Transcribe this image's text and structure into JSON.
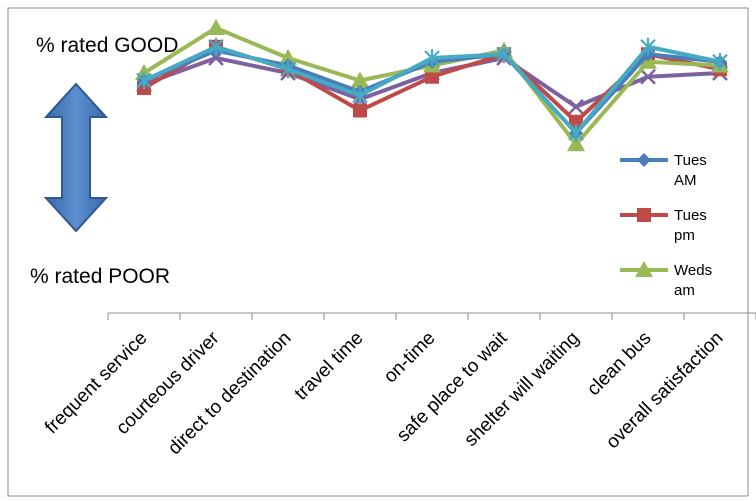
{
  "chart_data": {
    "type": "line",
    "top_label": "% rated GOOD",
    "bottom_label": "% rated POOR",
    "categories": [
      "frequent service",
      "courteous driver",
      "direct to destination",
      "travel time",
      "on-time",
      "safe place to wait",
      "shelter will waiting",
      "clean bus",
      "overall satisfaction"
    ],
    "series": [
      {
        "name": "Tues AM",
        "color": "#4a7ebb",
        "marker": "diamond",
        "values": [
          62,
          70,
          66,
          59,
          67,
          69,
          48,
          69,
          67
        ]
      },
      {
        "name": "Tues pm",
        "color": "#be4b48",
        "marker": "square",
        "values": [
          60,
          71,
          65,
          54,
          63,
          69,
          51,
          69,
          65
        ]
      },
      {
        "name": "Weds am",
        "color": "#98b954",
        "marker": "triangle",
        "values": [
          64,
          76,
          68,
          62,
          66,
          70,
          45,
          67,
          66
        ]
      },
      {
        "name": "",
        "color": "#7d60a0",
        "marker": "x",
        "values": [
          61,
          68,
          64,
          57,
          64,
          68,
          55,
          63,
          64
        ]
      },
      {
        "name": "",
        "color": "#46aac5",
        "marker": "asterisk",
        "values": [
          62,
          71,
          65,
          58,
          68,
          69,
          48,
          71,
          67
        ]
      }
    ],
    "ylim": [
      0,
      80
    ],
    "legend_position": "right"
  }
}
